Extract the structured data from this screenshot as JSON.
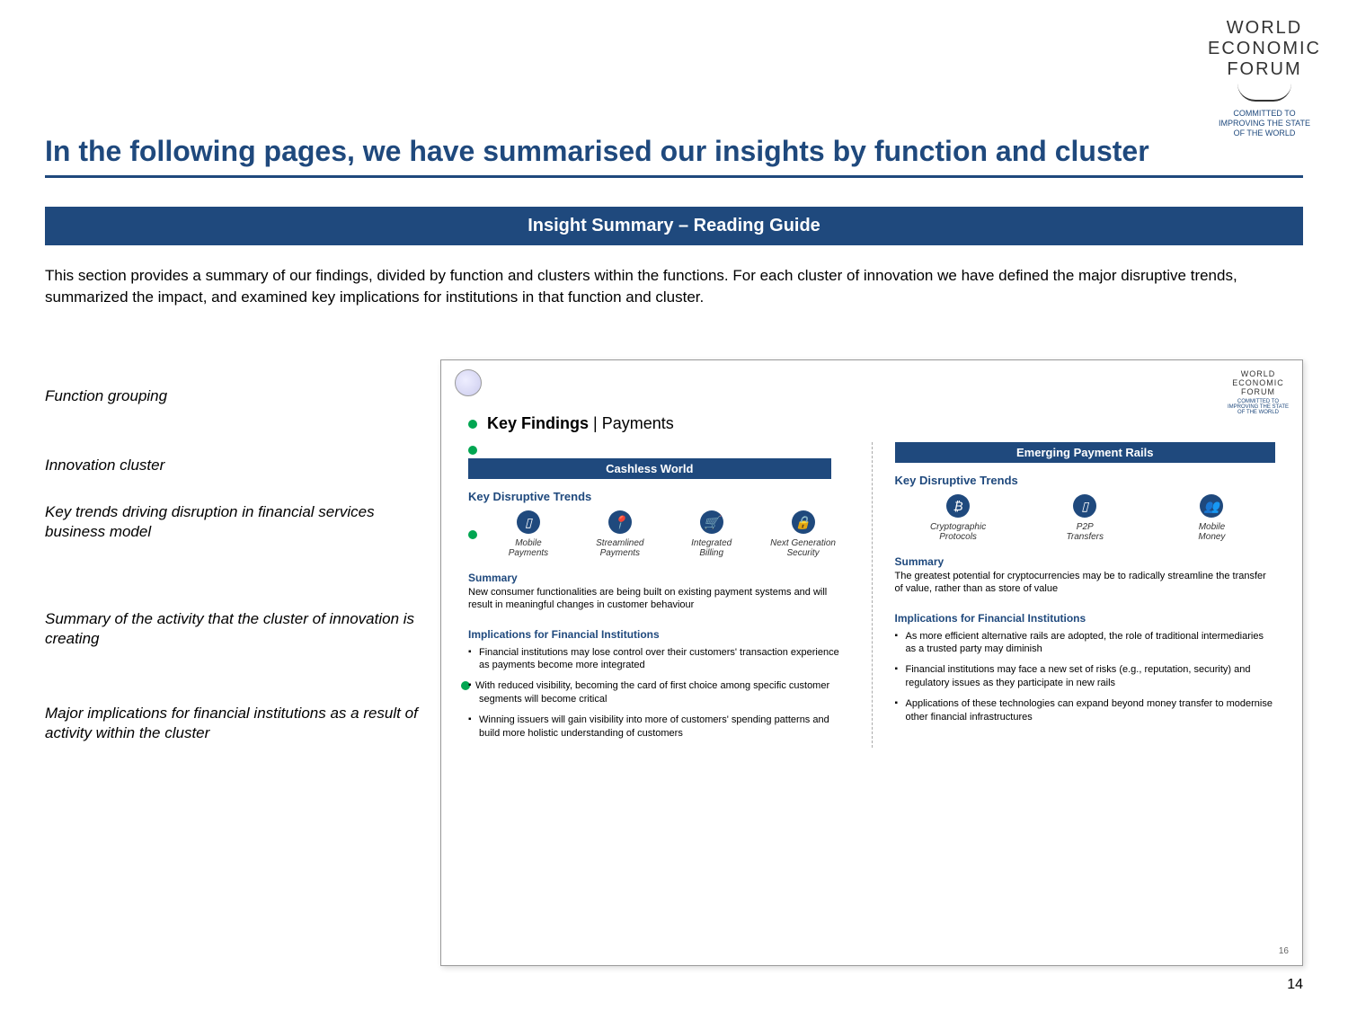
{
  "logo": {
    "line1": "WORLD",
    "line2": "ECONOMIC",
    "line3": "FORUM",
    "sub1": "COMMITTED TO",
    "sub2": "IMPROVING THE STATE",
    "sub3": "OF THE WORLD"
  },
  "title": "In the following pages, we have summarised our insights by function and cluster",
  "banner": "Insight Summary – Reading Guide",
  "intro": "This section provides a summary of our findings, divided by function and clusters within the functions. For each cluster of innovation we have defined the major disruptive trends, summarized the impact, and examined key implications for institutions in that function and cluster.",
  "labels": {
    "l1": "Function grouping",
    "l2": "Innovation cluster",
    "l3": "Key trends driving disruption in financial services business model",
    "l4": "Summary of the activity that the cluster of innovation is creating",
    "l5": "Major implications for financial institutions as a result of activity within the cluster"
  },
  "slide": {
    "kf_prefix": "Key Findings",
    "kf_sep": " | ",
    "kf_func": "Payments",
    "left": {
      "cluster": "Cashless World",
      "kdt": "Key Disruptive Trends",
      "trends": {
        "t1": {
          "icon": "▯",
          "label1": "Mobile",
          "label2": "Payments"
        },
        "t2": {
          "icon": "📍",
          "label1": "Streamlined",
          "label2": "Payments"
        },
        "t3": {
          "icon": "🛒",
          "label1": "Integrated",
          "label2": "Billing"
        },
        "t4": {
          "icon": "🔒",
          "label1": "Next Generation",
          "label2": "Security"
        }
      },
      "sum_h": "Summary",
      "sum_p": "New consumer functionalities are being built on existing payment systems and will result in meaningful changes in customer behaviour",
      "imp_h": "Implications for Financial Institutions",
      "imp1": "Financial institutions may lose control over their customers' transaction experience as payments become more integrated",
      "imp2": "With reduced visibility, becoming the card of first choice among specific customer segments will become critical",
      "imp3": "Winning issuers will gain visibility into more of customers' spending patterns and build more holistic understanding of customers"
    },
    "right": {
      "cluster": "Emerging Payment Rails",
      "kdt": "Key Disruptive Trends",
      "trends": {
        "t1": {
          "icon": "₿",
          "label1": "Cryptographic",
          "label2": "Protocols"
        },
        "t2": {
          "icon": "▯",
          "label1": "P2P",
          "label2": "Transfers"
        },
        "t3": {
          "icon": "👥",
          "label1": "Mobile",
          "label2": "Money"
        }
      },
      "sum_h": "Summary",
      "sum_p": "The greatest potential for cryptocurrencies may be to radically streamline the transfer of value, rather than as store of value",
      "imp_h": "Implications for Financial Institutions",
      "imp1": "As more efficient alternative rails are adopted, the role of traditional intermediaries as a trusted party may diminish",
      "imp2": "Financial institutions may face a new set of risks (e.g., reputation, security) and regulatory issues as they participate in new rails",
      "imp3": "Applications of these technologies can expand beyond money transfer to modernise other financial infrastructures"
    },
    "mini_page": "16"
  },
  "page": "14"
}
